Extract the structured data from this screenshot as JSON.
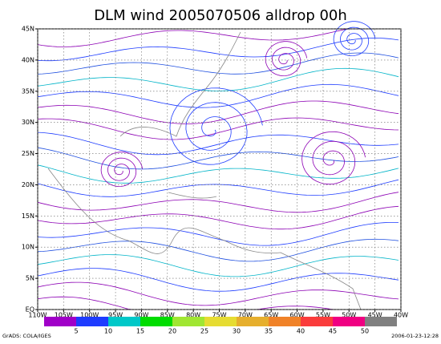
{
  "map": {
    "title": "DLM wind 2005070506 alldrop 00h",
    "xlim": [
      -110,
      -40
    ],
    "ylim": [
      0,
      45
    ],
    "xticks": [
      {
        "value": -110,
        "label": "110W"
      },
      {
        "value": -105,
        "label": "105W"
      },
      {
        "value": -100,
        "label": "100W"
      },
      {
        "value": -95,
        "label": "95W"
      },
      {
        "value": -90,
        "label": "90W"
      },
      {
        "value": -85,
        "label": "85W"
      },
      {
        "value": -80,
        "label": "80W"
      },
      {
        "value": -75,
        "label": "75W"
      },
      {
        "value": -70,
        "label": "70W"
      },
      {
        "value": -65,
        "label": "65W"
      },
      {
        "value": -60,
        "label": "60W"
      },
      {
        "value": -55,
        "label": "55W"
      },
      {
        "value": -50,
        "label": "50W"
      },
      {
        "value": -45,
        "label": "45W"
      },
      {
        "value": -40,
        "label": "40W"
      }
    ],
    "yticks": [
      {
        "value": 0,
        "label": "EQ"
      },
      {
        "value": 5,
        "label": "5N"
      },
      {
        "value": 10,
        "label": "10N"
      },
      {
        "value": 15,
        "label": "15N"
      },
      {
        "value": 20,
        "label": "20N"
      },
      {
        "value": 25,
        "label": "25N"
      },
      {
        "value": 30,
        "label": "30N"
      },
      {
        "value": 35,
        "label": "35N"
      },
      {
        "value": 40,
        "label": "40N"
      },
      {
        "value": 45,
        "label": "45N"
      }
    ],
    "grid": true,
    "colorbar": {
      "levels": [
        5,
        10,
        15,
        20,
        25,
        30,
        35,
        40,
        45,
        50
      ],
      "colors": [
        "#a000c8",
        "#1e3cff",
        "#00c8c8",
        "#00dc00",
        "#a0e632",
        "#e6dc32",
        "#e6af2d",
        "#f08228",
        "#fa3c3c",
        "#f00082",
        "#808080"
      ]
    },
    "footer_left": "GrADS: COLA/IGES",
    "footer_right": "2006-01-23-12:28"
  }
}
